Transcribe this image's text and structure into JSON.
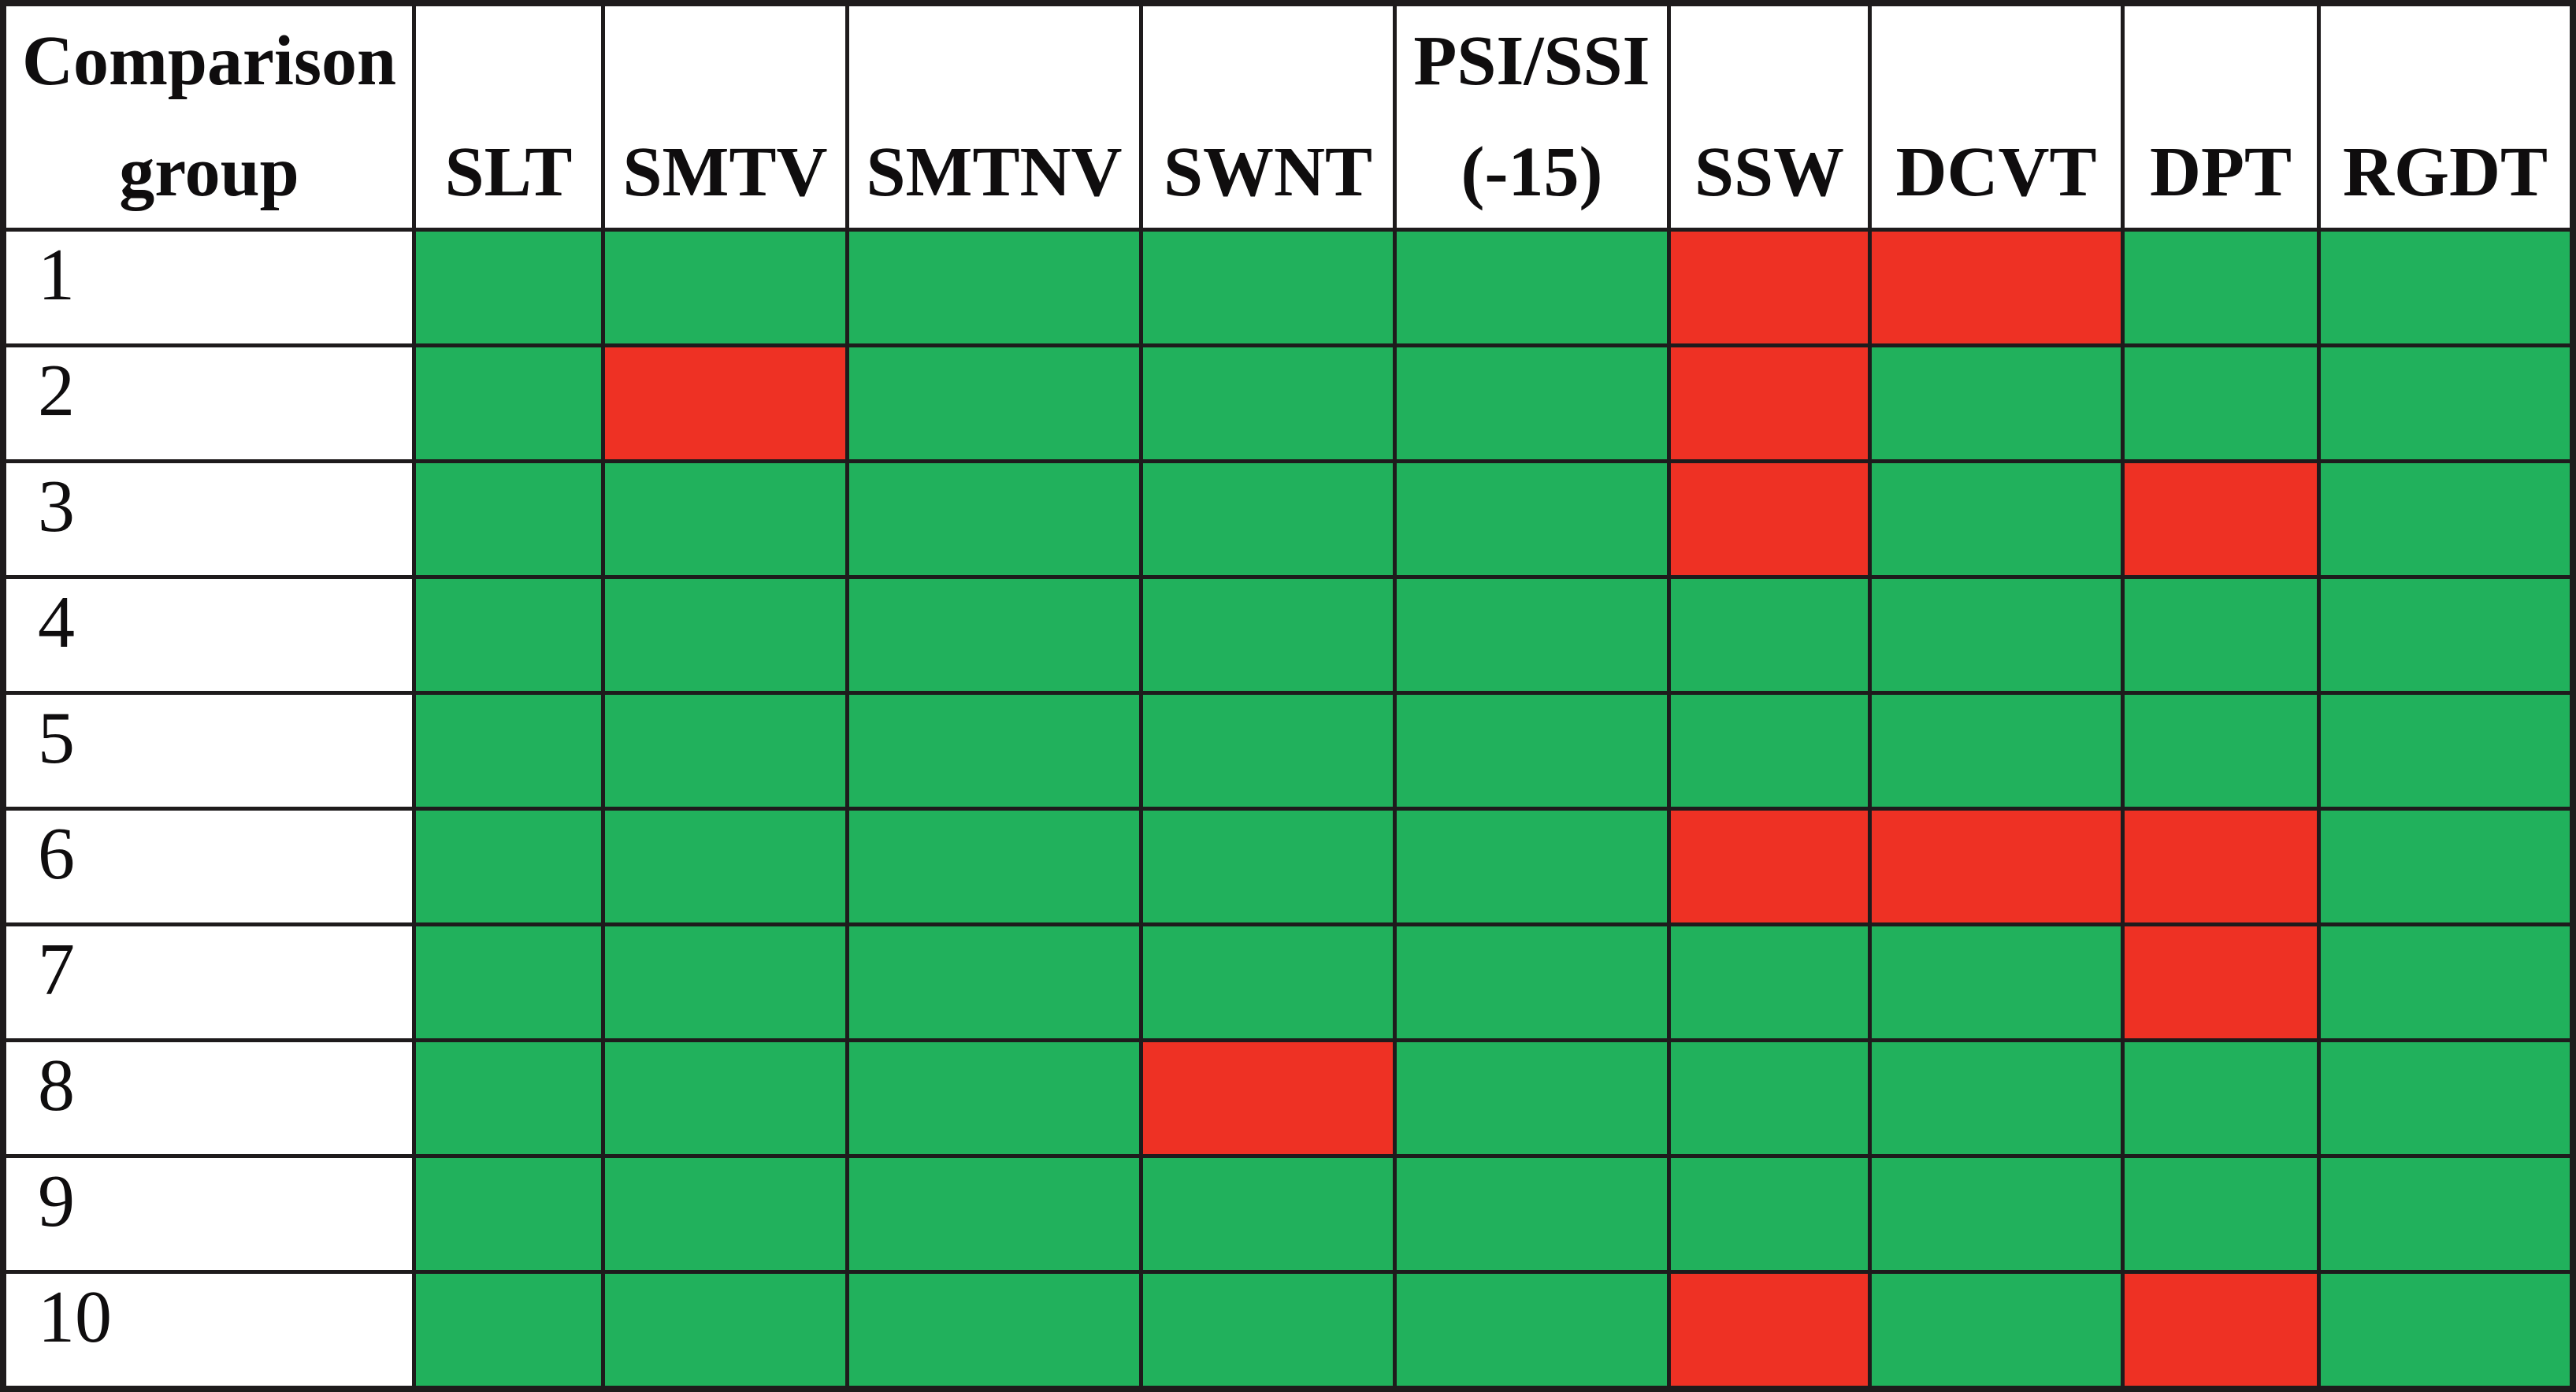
{
  "figure": {
    "description": "Comparison table of test results per group; each cell is a solid pass/fail color patch",
    "corner_header": {
      "line1": "Comparison",
      "line2": "group"
    },
    "columns": [
      {
        "id": "SLT",
        "line1": "",
        "line2": "SLT"
      },
      {
        "id": "SMTV",
        "line1": "",
        "line2": "SMTV"
      },
      {
        "id": "SMTNV",
        "line1": "",
        "line2": "SMTNV"
      },
      {
        "id": "SWNT",
        "line1": "",
        "line2": "SWNT"
      },
      {
        "id": "PSI-SSI",
        "line1": "PSI/SSI",
        "line2": "(-15)"
      },
      {
        "id": "SSW",
        "line1": "",
        "line2": "SSW"
      },
      {
        "id": "DCVT",
        "line1": "",
        "line2": "DCVT"
      },
      {
        "id": "DPT",
        "line1": "",
        "line2": "DPT"
      },
      {
        "id": "RGDT",
        "line1": "",
        "line2": "RGDT"
      }
    ],
    "rows": [
      {
        "label": "1",
        "cells": [
          "green",
          "green",
          "green",
          "green",
          "green",
          "red",
          "red",
          "green",
          "green"
        ]
      },
      {
        "label": "2",
        "cells": [
          "green",
          "red",
          "green",
          "green",
          "green",
          "red",
          "green",
          "green",
          "green"
        ]
      },
      {
        "label": "3",
        "cells": [
          "green",
          "green",
          "green",
          "green",
          "green",
          "red",
          "green",
          "red",
          "green"
        ]
      },
      {
        "label": "4",
        "cells": [
          "green",
          "green",
          "green",
          "green",
          "green",
          "green",
          "green",
          "green",
          "green"
        ]
      },
      {
        "label": "5",
        "cells": [
          "green",
          "green",
          "green",
          "green",
          "green",
          "green",
          "green",
          "green",
          "green"
        ]
      },
      {
        "label": "6",
        "cells": [
          "green",
          "green",
          "green",
          "green",
          "green",
          "red",
          "red",
          "red",
          "green"
        ]
      },
      {
        "label": "7",
        "cells": [
          "green",
          "green",
          "green",
          "green",
          "green",
          "green",
          "green",
          "red",
          "green"
        ]
      },
      {
        "label": "8",
        "cells": [
          "green",
          "green",
          "green",
          "red",
          "green",
          "green",
          "green",
          "green",
          "green"
        ]
      },
      {
        "label": "9",
        "cells": [
          "green",
          "green",
          "green",
          "green",
          "green",
          "green",
          "green",
          "green",
          "green"
        ]
      },
      {
        "label": "10",
        "cells": [
          "green",
          "green",
          "green",
          "green",
          "green",
          "red",
          "green",
          "red",
          "green"
        ]
      }
    ],
    "colors": {
      "green": "#21B15C",
      "red": "#EE3124",
      "grid": "#1e1b1c",
      "header_bg": "#ffffff"
    }
  },
  "chart_data": {
    "type": "heatmap",
    "title": "",
    "row_label_header": "Comparison group",
    "columns": [
      "SLT",
      "SMTV",
      "SMTNV",
      "SWNT",
      "PSI/SSI (-15)",
      "SSW",
      "DCVT",
      "DPT",
      "RGDT"
    ],
    "rows": [
      "1",
      "2",
      "3",
      "4",
      "5",
      "6",
      "7",
      "8",
      "9",
      "10"
    ],
    "cell_colors": [
      [
        "green",
        "green",
        "green",
        "green",
        "green",
        "red",
        "red",
        "green",
        "green"
      ],
      [
        "green",
        "red",
        "green",
        "green",
        "green",
        "red",
        "green",
        "green",
        "green"
      ],
      [
        "green",
        "green",
        "green",
        "green",
        "green",
        "red",
        "green",
        "red",
        "green"
      ],
      [
        "green",
        "green",
        "green",
        "green",
        "green",
        "green",
        "green",
        "green",
        "green"
      ],
      [
        "green",
        "green",
        "green",
        "green",
        "green",
        "green",
        "green",
        "green",
        "green"
      ],
      [
        "green",
        "green",
        "green",
        "green",
        "green",
        "red",
        "red",
        "red",
        "green"
      ],
      [
        "green",
        "green",
        "green",
        "green",
        "green",
        "green",
        "green",
        "red",
        "green"
      ],
      [
        "green",
        "green",
        "green",
        "red",
        "green",
        "green",
        "green",
        "green",
        "green"
      ],
      [
        "green",
        "green",
        "green",
        "green",
        "green",
        "green",
        "green",
        "green",
        "green"
      ],
      [
        "green",
        "green",
        "green",
        "green",
        "green",
        "red",
        "green",
        "red",
        "green"
      ]
    ],
    "value_map": {
      "green": 1,
      "red": 0
    },
    "values": [
      [
        1,
        1,
        1,
        1,
        1,
        0,
        0,
        1,
        1
      ],
      [
        1,
        0,
        1,
        1,
        1,
        0,
        1,
        1,
        1
      ],
      [
        1,
        1,
        1,
        1,
        1,
        0,
        1,
        0,
        1
      ],
      [
        1,
        1,
        1,
        1,
        1,
        1,
        1,
        1,
        1
      ],
      [
        1,
        1,
        1,
        1,
        1,
        1,
        1,
        1,
        1
      ],
      [
        1,
        1,
        1,
        1,
        1,
        0,
        0,
        0,
        1
      ],
      [
        1,
        1,
        1,
        1,
        1,
        1,
        1,
        0,
        1
      ],
      [
        1,
        1,
        1,
        0,
        1,
        1,
        1,
        1,
        1
      ],
      [
        1,
        1,
        1,
        1,
        1,
        1,
        1,
        1,
        1
      ],
      [
        1,
        1,
        1,
        1,
        1,
        0,
        1,
        0,
        1
      ]
    ],
    "layout": {
      "grid": "on",
      "legend": "none",
      "palette": {
        "green": "#21B15C",
        "red": "#EE3124"
      }
    }
  }
}
